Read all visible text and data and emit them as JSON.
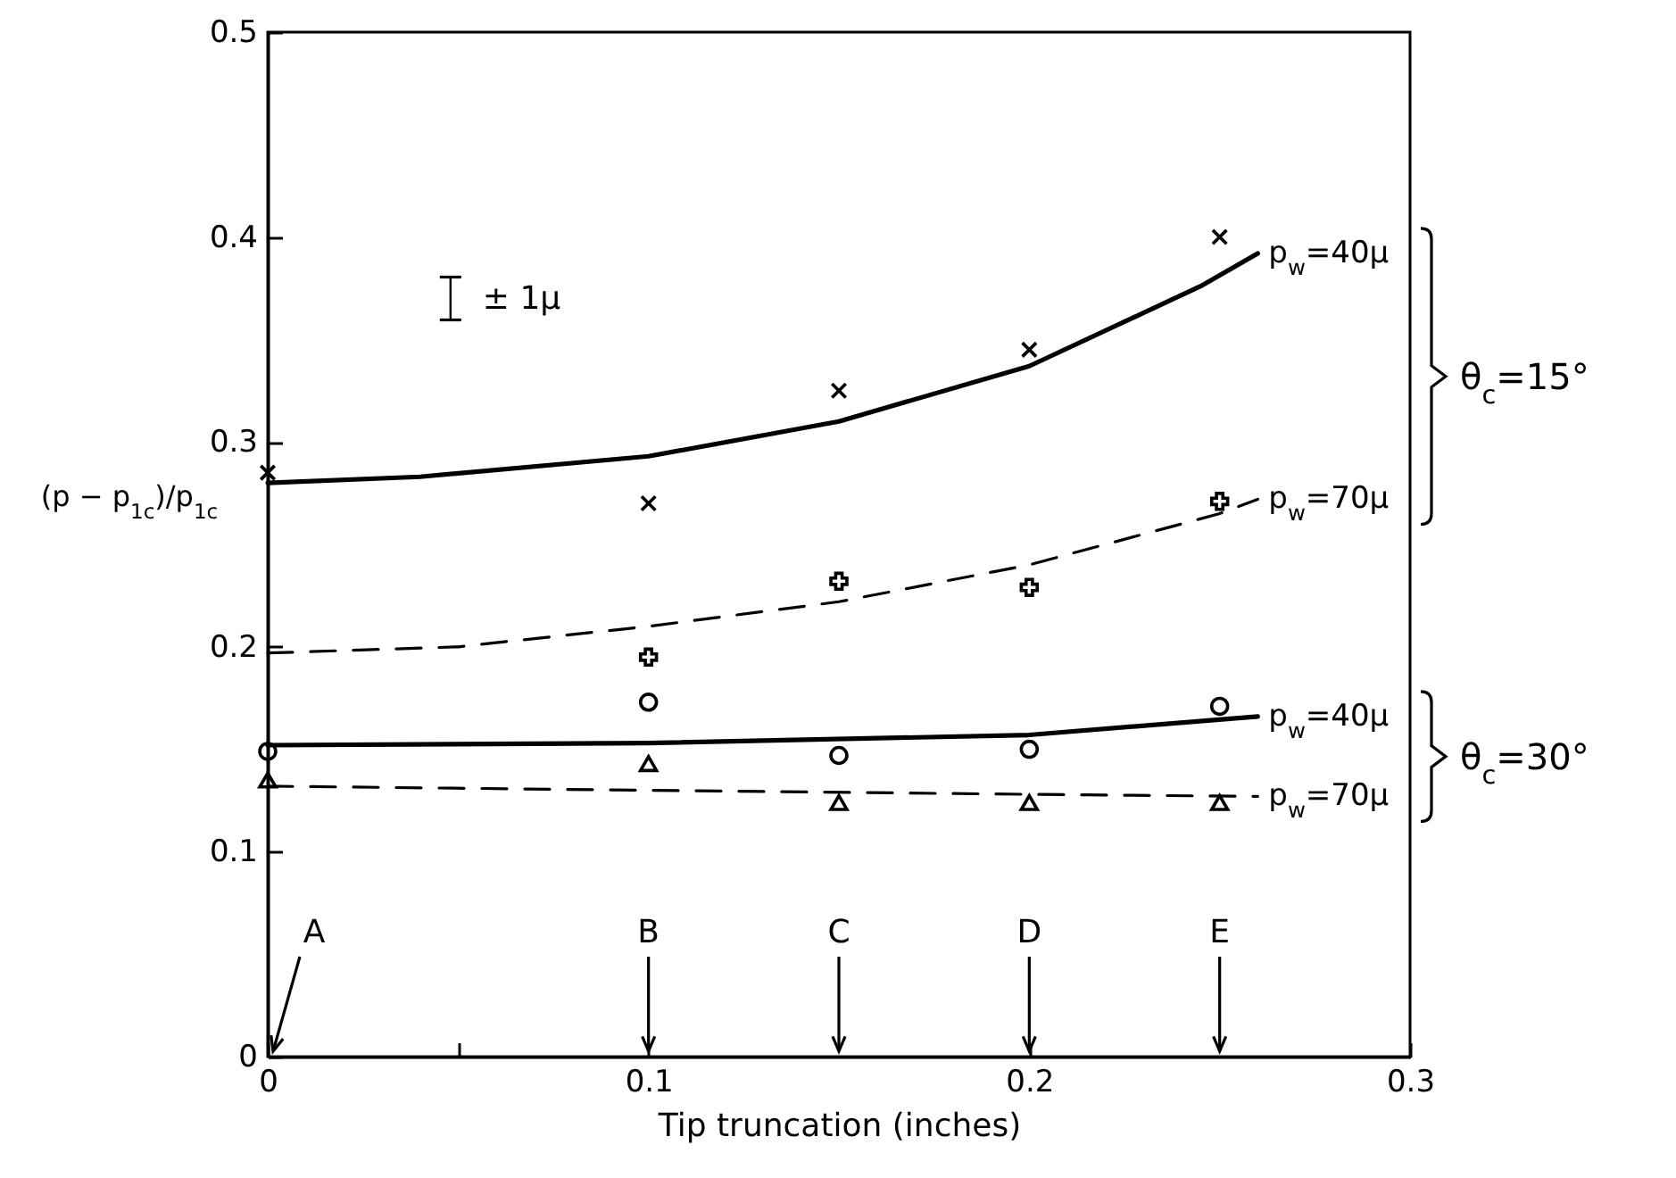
{
  "chart_data": {
    "type": "scatter",
    "xlabel": "Tip truncation  (inches)",
    "ylabel": "(p − p$_{1c}$)/p$_{1c}$",
    "x": [
      0,
      0.1,
      0.15,
      0.2,
      0.25
    ],
    "series": [
      {
        "name": "p$_{w}$=40μ",
        "type": "line",
        "line_style": "solid",
        "color": "#000000",
        "x": [
          0,
          0.04,
          0.1,
          0.15,
          0.2,
          0.245,
          0.26
        ],
        "values": [
          0.28,
          0.283,
          0.293,
          0.31,
          0.337,
          0.376,
          0.392
        ]
      },
      {
        "marker": "x",
        "color": "#000000",
        "values": [
          0.285,
          0.27,
          0.325,
          0.345,
          0.4
        ]
      },
      {
        "name": "p$_{w}$=70μ",
        "type": "line",
        "line_style": "dashed",
        "color": "#000000",
        "x": [
          0,
          0.05,
          0.1,
          0.15,
          0.2,
          0.25,
          0.26
        ],
        "values": [
          0.197,
          0.2,
          0.21,
          0.222,
          0.24,
          0.265,
          0.272
        ]
      },
      {
        "marker": "cross",
        "color": "#000000",
        "x": [
          0.1,
          0.15,
          0.2,
          0.25
        ],
        "values": [
          0.195,
          0.232,
          0.229,
          0.271
        ]
      },
      {
        "name": "p$_{w}$=40μ",
        "type": "line",
        "line_style": "solid",
        "color": "#000000",
        "x": [
          0,
          0.1,
          0.2,
          0.26
        ],
        "values": [
          0.152,
          0.153,
          0.157,
          0.166
        ]
      },
      {
        "marker": "circle",
        "color": "#000000",
        "values": [
          0.149,
          0.173,
          0.147,
          0.15,
          0.171
        ]
      },
      {
        "name": "p$_{w}$=70μ",
        "type": "line",
        "line_style": "dashed",
        "color": "#000000",
        "x": [
          0,
          0.1,
          0.2,
          0.26
        ],
        "values": [
          0.132,
          0.13,
          0.128,
          0.127
        ]
      },
      {
        "marker": "triangle",
        "color": "#000000",
        "values": [
          0.135,
          0.143,
          0.124,
          0.124,
          0.124
        ]
      }
    ],
    "xlim": [
      0,
      0.3
    ],
    "ylim": [
      0,
      0.5
    ],
    "xticks": [
      0,
      {
        "value": 0.05,
        "label": null
      },
      0.1,
      0.2,
      0.3
    ],
    "yticks": [
      0,
      0.1,
      0.2,
      0.3,
      0.4,
      0.5
    ],
    "annotations": [
      "± 1μ",
      "θ$_{c}$=15°",
      "θ$_{c}$=30°",
      "A",
      "B",
      "C",
      "D",
      "E"
    ],
    "grid": false,
    "legend": false
  }
}
